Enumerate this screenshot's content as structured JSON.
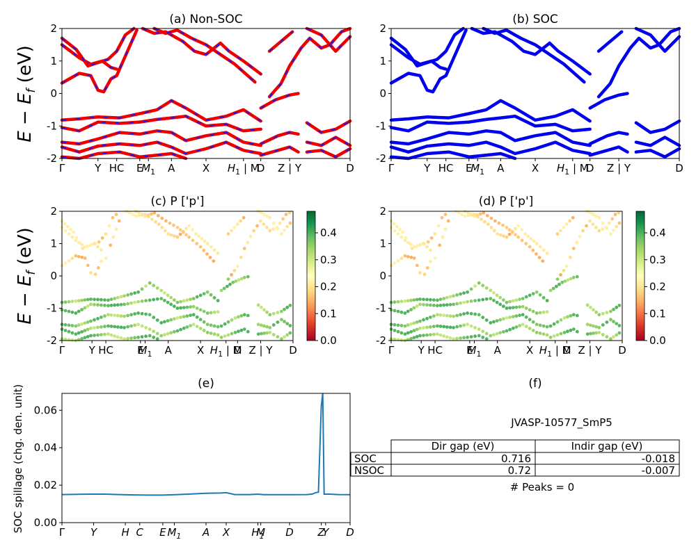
{
  "chart_data": [
    {
      "id": "a",
      "type": "line",
      "title": "(a) Non-SOC",
      "ylabel": "E − E_f (eV)",
      "ylim": [
        -2,
        2
      ],
      "yticks": [
        "-2",
        "-1",
        "0",
        "1",
        "2"
      ],
      "xticklabels": [
        "Γ",
        "Y",
        "HC",
        "E",
        "M1",
        "A",
        "X",
        "H1 | M",
        "D",
        "Z | Y",
        "D"
      ],
      "xtick_positions": [
        0.0,
        0.125,
        0.19,
        0.27,
        0.3,
        0.38,
        0.5,
        0.63,
        0.69,
        0.79,
        1.0
      ],
      "series": [
        {
          "values": [
            [
              0,
              0.32
            ],
            [
              0.06,
              0.62
            ],
            [
              0.1,
              0.55
            ],
            [
              0.125,
              0.1
            ],
            [
              0.145,
              0.05
            ],
            [
              0.17,
              0.45
            ],
            [
              0.19,
              0.55
            ],
            [
              0.21,
              0.95
            ],
            [
              0.26,
              1.95
            ]
          ]
        },
        {
          "values": [
            [
              0,
              1.5
            ],
            [
              0.06,
              1.1
            ],
            [
              0.1,
              0.9
            ],
            [
              0.14,
              1.0
            ],
            [
              0.17,
              0.8
            ],
            [
              0.19,
              0.75
            ]
          ]
        },
        {
          "values": [
            [
              0,
              1.7
            ],
            [
              0.05,
              1.35
            ],
            [
              0.09,
              0.85
            ],
            [
              0.125,
              0.95
            ],
            [
              0.16,
              1.05
            ],
            [
              0.19,
              1.3
            ],
            [
              0.22,
              1.8
            ],
            [
              0.25,
              2.0
            ]
          ]
        },
        {
          "values": [
            [
              0.28,
              2.0
            ],
            [
              0.32,
              1.85
            ],
            [
              0.36,
              1.9
            ],
            [
              0.42,
              1.6
            ],
            [
              0.46,
              1.3
            ],
            [
              0.5,
              1.2
            ],
            [
              0.55,
              1.55
            ],
            [
              0.58,
              1.3
            ],
            [
              0.63,
              1.0
            ],
            [
              0.69,
              0.6
            ]
          ]
        },
        {
          "values": [
            [
              0.32,
              2.0
            ],
            [
              0.36,
              1.85
            ],
            [
              0.4,
              1.95
            ],
            [
              0.45,
              1.7
            ],
            [
              0.5,
              1.5
            ],
            [
              0.55,
              1.2
            ],
            [
              0.6,
              0.9
            ],
            [
              0.67,
              0.35
            ]
          ]
        },
        {
          "values": [
            [
              0.72,
              -0.1
            ],
            [
              0.76,
              0.3
            ],
            [
              0.79,
              0.85
            ],
            [
              0.83,
              1.4
            ],
            [
              0.86,
              1.7
            ],
            [
              0.9,
              1.4
            ],
            [
              0.93,
              1.5
            ],
            [
              0.97,
              1.9
            ],
            [
              1.0,
              2.0
            ]
          ]
        },
        {
          "values": [
            [
              0.72,
              1.3
            ],
            [
              0.76,
              1.6
            ],
            [
              0.8,
              1.9
            ]
          ]
        },
        {
          "values": [
            [
              0.85,
              2.0
            ],
            [
              0.9,
              1.8
            ],
            [
              0.95,
              1.3
            ],
            [
              1.0,
              1.75
            ]
          ]
        },
        {
          "values": [
            [
              0,
              -0.82
            ],
            [
              0.06,
              -0.78
            ],
            [
              0.125,
              -0.72
            ],
            [
              0.2,
              -0.75
            ],
            [
              0.27,
              -0.62
            ],
            [
              0.33,
              -0.5
            ],
            [
              0.38,
              -0.22
            ],
            [
              0.43,
              -0.45
            ],
            [
              0.5,
              -0.82
            ],
            [
              0.57,
              -0.7
            ],
            [
              0.63,
              -0.5
            ],
            [
              0.69,
              -0.85
            ]
          ]
        },
        {
          "values": [
            [
              0,
              -1.05
            ],
            [
              0.06,
              -1.15
            ],
            [
              0.125,
              -0.88
            ],
            [
              0.2,
              -0.92
            ],
            [
              0.27,
              -0.88
            ],
            [
              0.33,
              -0.8
            ],
            [
              0.38,
              -0.75
            ],
            [
              0.43,
              -0.7
            ],
            [
              0.5,
              -1.0
            ],
            [
              0.57,
              -0.95
            ],
            [
              0.63,
              -1.15
            ],
            [
              0.69,
              -1.1
            ]
          ]
        },
        {
          "values": [
            [
              0,
              -1.5
            ],
            [
              0.06,
              -1.55
            ],
            [
              0.125,
              -1.4
            ],
            [
              0.2,
              -1.2
            ],
            [
              0.27,
              -1.25
            ],
            [
              0.33,
              -1.15
            ],
            [
              0.38,
              -1.2
            ],
            [
              0.43,
              -1.45
            ],
            [
              0.5,
              -1.3
            ],
            [
              0.57,
              -1.2
            ],
            [
              0.63,
              -1.5
            ],
            [
              0.69,
              -1.6
            ]
          ]
        },
        {
          "values": [
            [
              0,
              -1.65
            ],
            [
              0.06,
              -1.8
            ],
            [
              0.125,
              -1.62
            ],
            [
              0.2,
              -1.55
            ],
            [
              0.27,
              -1.6
            ],
            [
              0.33,
              -1.5
            ],
            [
              0.38,
              -1.65
            ],
            [
              0.43,
              -1.85
            ],
            [
              0.5,
              -1.7
            ],
            [
              0.57,
              -1.5
            ],
            [
              0.63,
              -1.75
            ],
            [
              0.69,
              -1.85
            ]
          ]
        },
        {
          "values": [
            [
              0,
              -1.95
            ],
            [
              0.06,
              -2.0
            ],
            [
              0.125,
              -1.85
            ],
            [
              0.2,
              -1.8
            ],
            [
              0.27,
              -1.95
            ],
            [
              0.33,
              -1.9
            ],
            [
              0.38,
              -1.85
            ],
            [
              0.43,
              -2.0
            ]
          ]
        },
        {
          "values": [
            [
              0.69,
              -0.45
            ],
            [
              0.74,
              -0.2
            ],
            [
              0.79,
              -0.05
            ],
            [
              0.82,
              0.0
            ]
          ]
        },
        {
          "values": [
            [
              0.69,
              -1.55
            ],
            [
              0.75,
              -1.3
            ],
            [
              0.79,
              -1.2
            ],
            [
              0.82,
              -1.25
            ]
          ]
        },
        {
          "values": [
            [
              0.69,
              -1.9
            ],
            [
              0.75,
              -1.75
            ],
            [
              0.79,
              -1.65
            ],
            [
              0.82,
              -1.8
            ]
          ]
        },
        {
          "values": [
            [
              0.85,
              -0.9
            ],
            [
              0.9,
              -1.2
            ],
            [
              0.95,
              -1.1
            ],
            [
              1.0,
              -0.85
            ]
          ]
        },
        {
          "values": [
            [
              0.85,
              -1.5
            ],
            [
              0.9,
              -1.6
            ],
            [
              0.95,
              -1.35
            ],
            [
              1.0,
              -1.6
            ]
          ]
        },
        {
          "values": [
            [
              0.85,
              -1.8
            ],
            [
              0.9,
              -1.75
            ],
            [
              0.95,
              -1.95
            ],
            [
              1.0,
              -1.7
            ]
          ]
        }
      ]
    },
    {
      "id": "b",
      "type": "line",
      "title": "(b) SOC",
      "ylim": [
        -2,
        2
      ],
      "yticks": [
        "-2",
        "-1",
        "0",
        "1",
        "2"
      ],
      "xticklabels": [
        "Γ",
        "Y",
        "HC",
        "E",
        "M1",
        "A",
        "X",
        "H1 | M",
        "D",
        "Z | Y",
        "D"
      ],
      "xtick_positions": [
        0.0,
        0.125,
        0.19,
        0.27,
        0.3,
        0.38,
        0.5,
        0.63,
        0.69,
        0.79,
        1.0
      ]
    },
    {
      "id": "c",
      "type": "scatter",
      "title": "(c)  P ['p']",
      "ylabel": "E − E_f (eV)",
      "ylim": [
        -2,
        2
      ],
      "yticks": [
        "-2",
        "-1",
        "0",
        "1",
        "2"
      ],
      "xticklabels": [
        "Γ",
        "Y",
        "HC",
        "E",
        "M1",
        "A",
        "X",
        "H1 | M",
        "D",
        "Z | Y",
        "D"
      ],
      "xtick_positions": [
        0.0,
        0.13,
        0.19,
        0.34,
        0.36,
        0.46,
        0.6,
        0.71,
        0.76,
        0.86,
        1.0
      ],
      "colorbar_ticks": [
        "0.0",
        "0.1",
        "0.2",
        "0.3",
        "0.4"
      ],
      "colorbar_range": [
        0.0,
        0.48
      ]
    },
    {
      "id": "d",
      "type": "scatter",
      "title": "(d) P ['p']",
      "ylim": [
        -2,
        2
      ],
      "yticks": [
        "-2",
        "-1",
        "0",
        "1",
        "2"
      ],
      "xticklabels": [
        "Γ",
        "Y",
        "HC",
        "E",
        "M1",
        "A",
        "X",
        "H1 | M",
        "D",
        "Z | Y",
        "D"
      ],
      "xtick_positions": [
        0.0,
        0.13,
        0.19,
        0.34,
        0.36,
        0.46,
        0.6,
        0.71,
        0.76,
        0.86,
        1.0
      ],
      "colorbar_ticks": [
        "0.0",
        "0.1",
        "0.2",
        "0.3",
        "0.4"
      ],
      "colorbar_range": [
        0.0,
        0.48
      ]
    },
    {
      "id": "e",
      "type": "line",
      "title": "(e)",
      "ylabel": "SOC spillage (chg. den. unit)",
      "ylim": [
        0.0,
        0.069
      ],
      "yticks": [
        "0.00",
        "0.02",
        "0.04",
        "0.06"
      ],
      "xticklabels": [
        "Γ",
        "Y",
        "H",
        "C",
        "E",
        "M1",
        "A",
        "X",
        "H1",
        "M",
        "D",
        "Z",
        "Y",
        "D"
      ],
      "xtick_positions": [
        0.0,
        0.11,
        0.22,
        0.27,
        0.35,
        0.39,
        0.5,
        0.57,
        0.68,
        0.69,
        0.79,
        0.9,
        0.915,
        1.0
      ],
      "x": [
        0.0,
        0.05,
        0.1,
        0.15,
        0.2,
        0.25,
        0.3,
        0.35,
        0.4,
        0.45,
        0.5,
        0.55,
        0.57,
        0.6,
        0.65,
        0.68,
        0.7,
        0.75,
        0.8,
        0.85,
        0.87,
        0.88,
        0.89,
        0.9,
        0.905,
        0.91,
        0.93,
        0.96,
        1.0
      ],
      "values": [
        0.015,
        0.0151,
        0.0152,
        0.0152,
        0.015,
        0.0148,
        0.0147,
        0.0147,
        0.015,
        0.0153,
        0.0157,
        0.0158,
        0.016,
        0.015,
        0.015,
        0.0152,
        0.0149,
        0.0149,
        0.0149,
        0.015,
        0.0153,
        0.016,
        0.0163,
        0.062,
        0.069,
        0.0152,
        0.0152,
        0.015,
        0.0149
      ]
    }
  ],
  "info_panel": {
    "title": "(f)",
    "material": "JVASP-10577_SmP5",
    "table": {
      "headers": [
        "Dir gap (eV)",
        "Indir gap (eV)"
      ],
      "rows": [
        {
          "label": "SOC",
          "dir": "0.716",
          "indir": "-0.018"
        },
        {
          "label": "NSOC",
          "dir": "0.72",
          "indir": "-0.007"
        }
      ]
    },
    "peaks": "# Peaks = 0"
  },
  "colors": {
    "nsoc_band": "#ee0000",
    "nsoc_dash": "#1a1aee",
    "soc_band": "#0000ee",
    "spillage_line": "#1f77b4"
  }
}
